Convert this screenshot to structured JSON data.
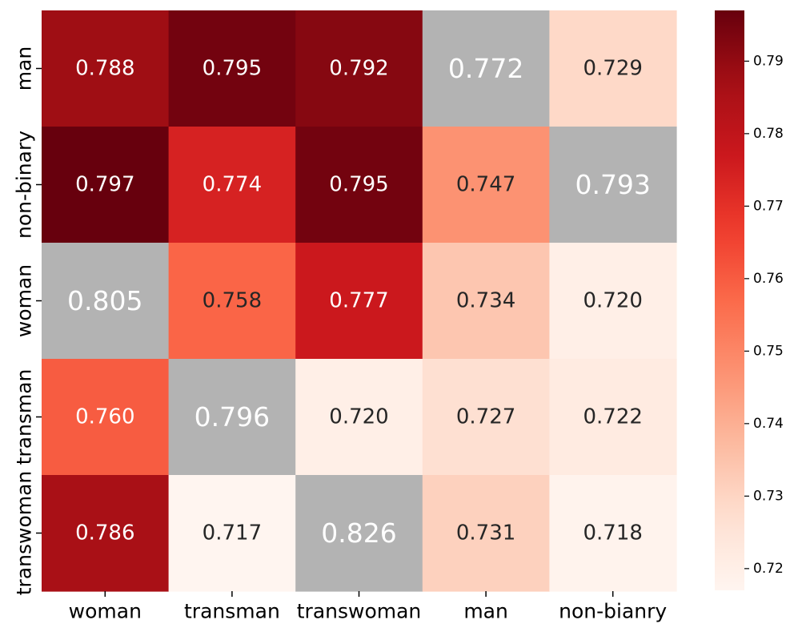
{
  "chart_data": {
    "type": "heatmap",
    "title": "",
    "xlabel": "",
    "ylabel": "",
    "x_categories": [
      "woman",
      "transman",
      "transwoman",
      "man",
      "non-bianry"
    ],
    "y_categories": [
      "man",
      "non-binary",
      "woman",
      "transman",
      "transwoman"
    ],
    "values": [
      [
        0.788,
        0.795,
        0.792,
        0.772,
        0.729
      ],
      [
        0.797,
        0.774,
        0.795,
        0.747,
        0.793
      ],
      [
        0.805,
        0.758,
        0.777,
        0.734,
        0.72
      ],
      [
        0.76,
        0.796,
        0.72,
        0.727,
        0.722
      ],
      [
        0.786,
        0.717,
        0.826,
        0.731,
        0.718
      ]
    ],
    "value_format": "0.000",
    "highlighted_cells": [
      {
        "row": 0,
        "col": 3
      },
      {
        "row": 1,
        "col": 4
      },
      {
        "row": 2,
        "col": 0
      },
      {
        "row": 3,
        "col": 1
      },
      {
        "row": 4,
        "col": 2
      }
    ],
    "highlight_color": "#b3b3b3",
    "colormap": "Reds",
    "colorbar": {
      "min": 0.717,
      "max": 0.797,
      "ticks": [
        0.72,
        0.73,
        0.74,
        0.75,
        0.76,
        0.77,
        0.78,
        0.79
      ],
      "tick_labels": [
        "0.72",
        "0.73",
        "0.74",
        "0.75",
        "0.76",
        "0.77",
        "0.78",
        "0.79"
      ]
    },
    "colors": {
      "dark_text": "#262626",
      "light_text": "#ffffff"
    }
  }
}
